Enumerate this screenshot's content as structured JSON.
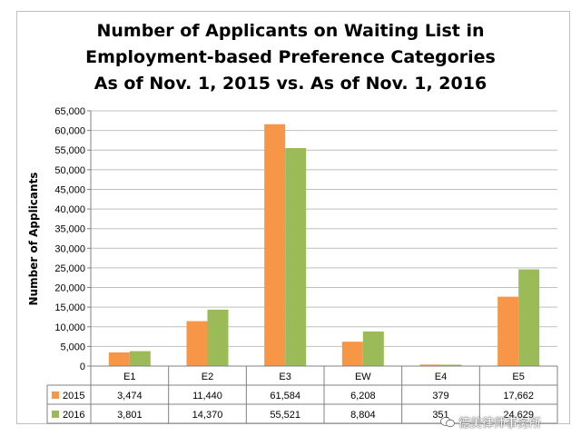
{
  "chart_data": {
    "type": "bar",
    "title": [
      "Number of Applicants on Waiting List in",
      "Employment-based Preference Categories",
      "As of Nov. 1, 2015 vs. As of Nov. 1, 2016"
    ],
    "ylabel": "Number of Applicants",
    "ylim": [
      0,
      65000
    ],
    "yticks": [
      "0",
      "5,000",
      "10,000",
      "15,000",
      "20,000",
      "25,000",
      "30,000",
      "35,000",
      "40,000",
      "45,000",
      "50,000",
      "55,000",
      "60,000",
      "65,000"
    ],
    "categories": [
      "E1",
      "E2",
      "E3",
      "EW",
      "E4",
      "E5"
    ],
    "series": [
      {
        "name": "2015",
        "color": "#F79646",
        "values": [
          3474,
          11440,
          61584,
          6208,
          379,
          17662
        ],
        "labels": [
          "3,474",
          "11,440",
          "61,584",
          "6,208",
          "379",
          "17,662"
        ]
      },
      {
        "name": "2016",
        "color": "#9BBB59",
        "values": [
          3801,
          14370,
          55521,
          8804,
          351,
          24629
        ],
        "labels": [
          "3,801",
          "14,370",
          "55,521",
          "8,804",
          "351",
          "24,629"
        ]
      }
    ],
    "grid": true,
    "legend": "data-table"
  },
  "watermark": {
    "text": "德美律师事务所",
    "icon": "wechat-icon"
  }
}
